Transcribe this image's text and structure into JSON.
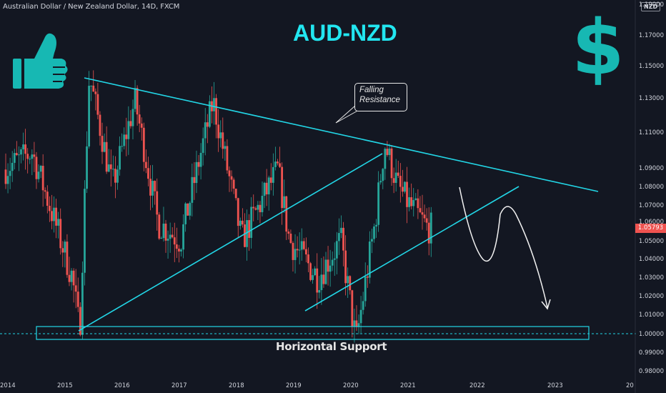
{
  "header": {
    "symbol_line": "Australian Dollar / New Zealand Dollar, 14D, FXCM",
    "currency_badge": "NZD"
  },
  "annotations": {
    "title": "AUD-NZD",
    "callout_line1": "Falling",
    "callout_line2": "Resistance",
    "support_label": "Horizontal Support",
    "dollar_symbol": "$",
    "thumb_icon": "thumbs-up-icon"
  },
  "colors": {
    "background": "#131722",
    "up_candle": "#26a69a",
    "down_candle": "#ef5350",
    "trendline": "#22d6e6",
    "title": "#22e6f0",
    "accent_icons": "#17b8b3",
    "price_tag": "#ef5350"
  },
  "price_axis": {
    "labels": [
      "1.19000",
      "1.17000",
      "1.15000",
      "1.13000",
      "1.11000",
      "1.09000",
      "1.08000",
      "1.07000",
      "1.06000",
      "1.05000",
      "1.04000",
      "1.03000",
      "1.02000",
      "1.01000",
      "1.00000",
      "0.99000",
      "0.98000"
    ],
    "current_price": "1.05793"
  },
  "time_axis": {
    "labels": [
      "2014",
      "2015",
      "2016",
      "2017",
      "2018",
      "2019",
      "2020",
      "2021",
      "2022",
      "2023",
      "20"
    ]
  },
  "chart_data": {
    "type": "candlestick",
    "title": "AUD-NZD",
    "series_name": "Australian Dollar / New Zealand Dollar, 14D, FXCM",
    "y_scale": "log",
    "ylim": [
      0.975,
      1.195
    ],
    "xlim": [
      2014.0,
      2025.0
    ],
    "grid": false,
    "current_price": 1.05793,
    "horizontal_support": 1.0,
    "key_points": [
      {
        "date": "2015-05",
        "price": 1.0
      },
      {
        "date": "2015-07",
        "price": 1.145
      },
      {
        "date": "2017-09",
        "price": 1.13
      },
      {
        "date": "2018-03",
        "price": 1.05
      },
      {
        "date": "2020-03",
        "price": 0.995
      },
      {
        "date": "2020-09",
        "price": 1.105
      },
      {
        "date": "2021-06",
        "price": 1.057
      }
    ],
    "lines": [
      {
        "name": "Falling Resistance",
        "from": {
          "date": "2015-06",
          "price": 1.145
        },
        "to": {
          "date": "2024-01",
          "price": 1.075
        }
      },
      {
        "name": "Rising support (2015-2020)",
        "from": {
          "date": "2015-05",
          "price": 1.002
        },
        "to": {
          "date": "2020-07",
          "price": 1.102
        }
      },
      {
        "name": "Rising support (2019-2022)",
        "from": {
          "date": "2019-03",
          "price": 1.01
        },
        "to": {
          "date": "2022-09",
          "price": 1.083
        }
      }
    ],
    "projection": "down from 1.08 toward 1.01"
  }
}
